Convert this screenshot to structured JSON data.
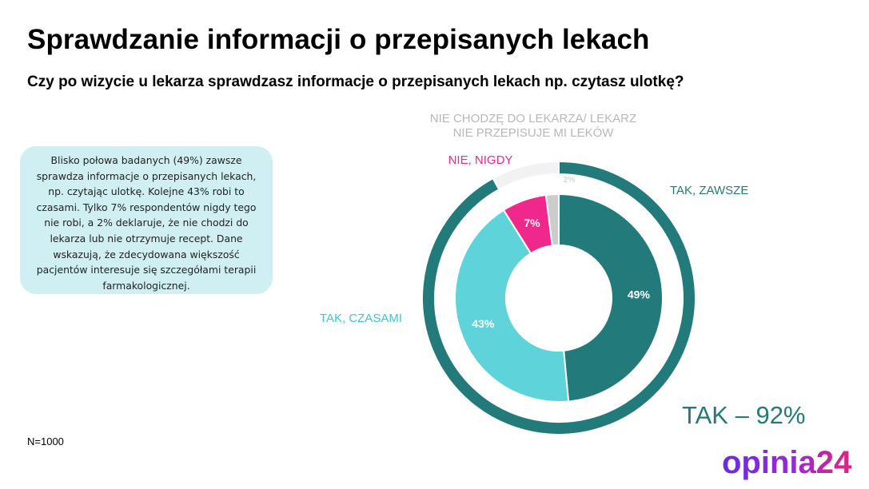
{
  "title": "Sprawdzanie informacji o przepisanych lekach",
  "subtitle": "Czy po wizycie u lekarza sprawdzasz informacje o przepisanych lekach np. czytasz ulotkę?",
  "summary": "Blisko połowa badanych (49%) zawsze sprawdza informacje o przepisanych lekach, np. czytając ulotkę. Kolejne 43% robi to czasami. Tylko 7% respondentów nigdy tego nie robi, a 2% deklaruje, że nie chodzi do lekarza lub nie otrzymuje recept. Dane wskazują, że zdecydowana większość pacjentów interesuje się szczegółami terapii farmakologicznej.",
  "sample": "N=1000",
  "total_label": "TAK – 92%",
  "logo_text": "opinia24",
  "chart_data": {
    "type": "pie",
    "subtype": "double-donut",
    "inner": [
      {
        "label": "TAK, ZAWSZE",
        "value": 49,
        "display": "49%",
        "color": "#237a7a"
      },
      {
        "label": "TAK, CZASAMI",
        "value": 43,
        "display": "43%",
        "color": "#5ed3d9"
      },
      {
        "label": "NIE, NIGDY",
        "value": 7,
        "display": "7%",
        "color": "#f0288c"
      },
      {
        "label": "NIE CHODZĘ DO LEKARZA/ LEKARZ NIE PRZEPISUJE MI LEKÓW",
        "value": 2,
        "display": "2%",
        "color": "#cccccc"
      }
    ],
    "outer": [
      {
        "label": "TAK",
        "value": 92,
        "color": "#237a7a"
      },
      {
        "label": "NIE",
        "value": 8,
        "color": "#f2f2f2"
      }
    ],
    "category_labels": [
      {
        "lines": [
          "TAK, ZAWSZE"
        ],
        "color": "#237a7a"
      },
      {
        "lines": [
          "TAK, CZASAMI"
        ],
        "color": "#3fc6d2"
      },
      {
        "lines": [
          "NIE, NIGDY"
        ],
        "color": "#f0288c"
      },
      {
        "lines": [
          "NIE CHODZĘ DO LEKARZA/ LEKARZ",
          "NIE PRZEPISUJE MI LEKÓW"
        ],
        "color": "#b7b7b7"
      }
    ]
  }
}
